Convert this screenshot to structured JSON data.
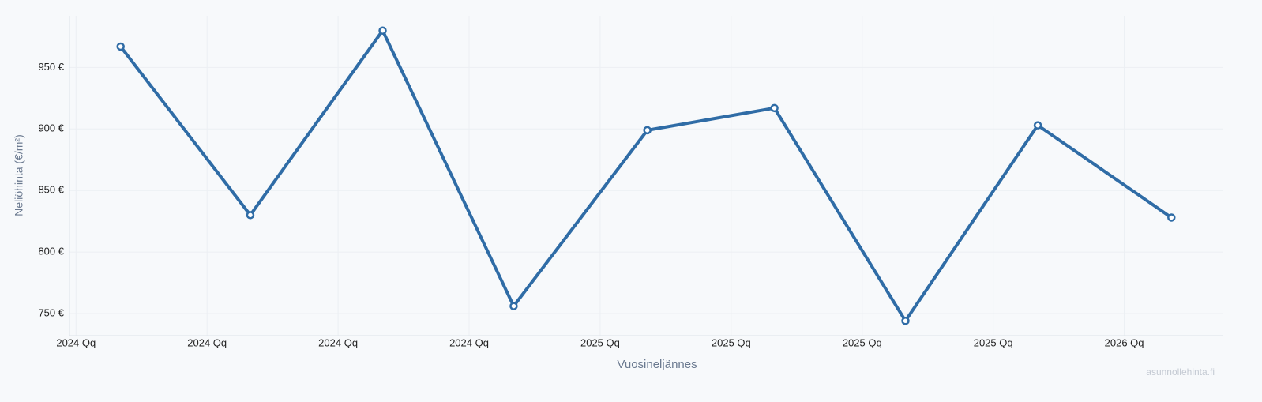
{
  "chart_data": {
    "type": "line",
    "x_label": "Vuosineljännes",
    "y_label": "Neliöhinta (€/m²)",
    "watermark": "asunnollehinta.fi",
    "x": [
      0.34,
      1.33,
      2.34,
      3.34,
      4.36,
      5.33,
      6.33,
      7.34,
      8.36
    ],
    "series": [
      {
        "color": "#2f6ca6",
        "values": [
          967,
          830,
          980,
          756,
          899,
          917,
          744,
          903,
          828
        ]
      }
    ],
    "xlim": [
      -0.05,
      8.75
    ],
    "xticks": [
      {
        "value": 0,
        "label": "2024 Qq"
      },
      {
        "value": 1,
        "label": "2024 Qq"
      },
      {
        "value": 2,
        "label": "2024 Qq"
      },
      {
        "value": 3,
        "label": "2024 Qq"
      },
      {
        "value": 4,
        "label": "2025 Qq"
      },
      {
        "value": 5,
        "label": "2025 Qq"
      },
      {
        "value": 6,
        "label": "2025 Qq"
      },
      {
        "value": 7,
        "label": "2025 Qq"
      },
      {
        "value": 8,
        "label": "2026 Qq"
      }
    ],
    "ylim": [
      732,
      992
    ],
    "yticks": [
      {
        "value": 750,
        "label": "750 €"
      },
      {
        "value": 800,
        "label": "800 €"
      },
      {
        "value": 850,
        "label": "850 €"
      },
      {
        "value": 900,
        "label": "900 €"
      },
      {
        "value": 950,
        "label": "950 €"
      }
    ],
    "grid": true
  }
}
